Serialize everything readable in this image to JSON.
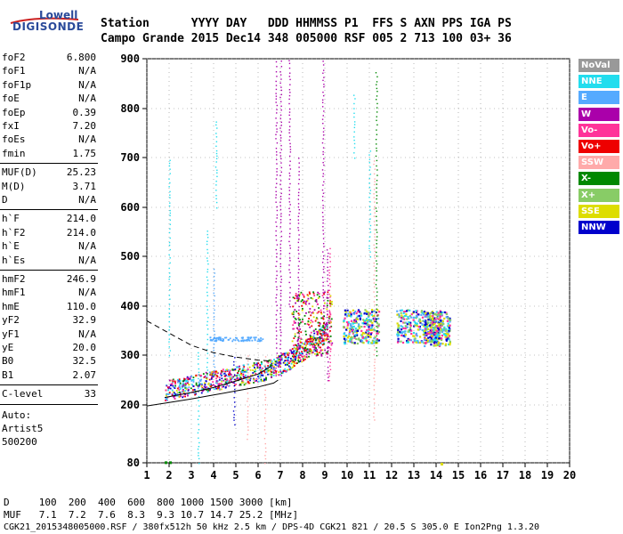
{
  "logo": {
    "line1": "Lowell",
    "line2": "DIGISONDE"
  },
  "header": {
    "labels": "Station      YYYY DAY   DDD HHMMSS P1  FFS S AXN PPS IGA PS",
    "values": "Campo Grande 2015 Dec14 348 005000 RSF 005 2 713 100 03+ 36"
  },
  "params": {
    "group1": [
      {
        "k": "foF2",
        "v": "6.800"
      },
      {
        "k": "foF1",
        "v": "N/A"
      },
      {
        "k": "foF1p",
        "v": "N/A"
      },
      {
        "k": "foE",
        "v": "N/A"
      },
      {
        "k": "foEp",
        "v": "0.39"
      },
      {
        "k": "fxI",
        "v": "7.20"
      },
      {
        "k": "foEs",
        "v": "N/A"
      },
      {
        "k": "fmin",
        "v": "1.75"
      }
    ],
    "group2": [
      {
        "k": "MUF(D)",
        "v": "25.23"
      },
      {
        "k": "M(D)",
        "v": "3.71"
      },
      {
        "k": "D",
        "v": "N/A"
      }
    ],
    "group3": [
      {
        "k": "h`F",
        "v": "214.0"
      },
      {
        "k": "h`F2",
        "v": "214.0"
      },
      {
        "k": "h`E",
        "v": "N/A"
      },
      {
        "k": "h`Es",
        "v": "N/A"
      }
    ],
    "group4": [
      {
        "k": "hmF2",
        "v": "246.9"
      },
      {
        "k": "hmF1",
        "v": "N/A"
      },
      {
        "k": "hmE",
        "v": "110.0"
      },
      {
        "k": "yF2",
        "v": "32.9"
      },
      {
        "k": "yF1",
        "v": "N/A"
      },
      {
        "k": "yE",
        "v": "20.0"
      },
      {
        "k": "B0",
        "v": "32.5"
      },
      {
        "k": "B1",
        "v": "2.07"
      }
    ],
    "clevel": {
      "k": "C-level",
      "v": "33"
    },
    "auto": [
      "Auto:",
      "Artist5",
      "500200"
    ]
  },
  "legend": [
    {
      "label": "NoVal",
      "color": "#999999"
    },
    {
      "label": "NNE",
      "color": "#22ddee"
    },
    {
      "label": "E",
      "color": "#55aaff"
    },
    {
      "label": "W",
      "color": "#aa00aa"
    },
    {
      "label": "Vo-",
      "color": "#ff3399"
    },
    {
      "label": "Vo+",
      "color": "#ee0000"
    },
    {
      "label": "SSW",
      "color": "#ffaaaa"
    },
    {
      "label": "X-",
      "color": "#008800"
    },
    {
      "label": "X+",
      "color": "#88cc66"
    },
    {
      "label": "SSE",
      "color": "#dddd00"
    },
    {
      "label": "NNW",
      "color": "#0000cc"
    }
  ],
  "chart_data": {
    "type": "scatter",
    "xlim": [
      1,
      20
    ],
    "ylim": [
      80,
      900
    ],
    "x_ticks": [
      "1",
      "2",
      "3",
      "4",
      "5",
      "6",
      "7",
      "8",
      "9",
      "10",
      "11",
      "12",
      "13",
      "14",
      "15",
      "16",
      "17",
      "18",
      "19",
      "20"
    ],
    "y_ticks": [
      "900",
      "800",
      "700",
      "600",
      "500",
      "400",
      "300",
      "200",
      "80"
    ],
    "y_tick_values": [
      900,
      800,
      700,
      600,
      500,
      400,
      300,
      200,
      80
    ]
  },
  "bottom": {
    "d_line": "D     100  200  400  600  800 1000 1500 3000 [km]",
    "muf_line": "MUF   7.1  7.2  7.6  8.3  9.3 10.7 14.7 25.2 [MHz]",
    "info_line": "CGK21_2015348005000.RSF / 380fx512h 50 kHz 2.5 km / DPS-4D CGK21 821 / 20.5 S 305.0 E Ion2Png 1.3.20"
  }
}
